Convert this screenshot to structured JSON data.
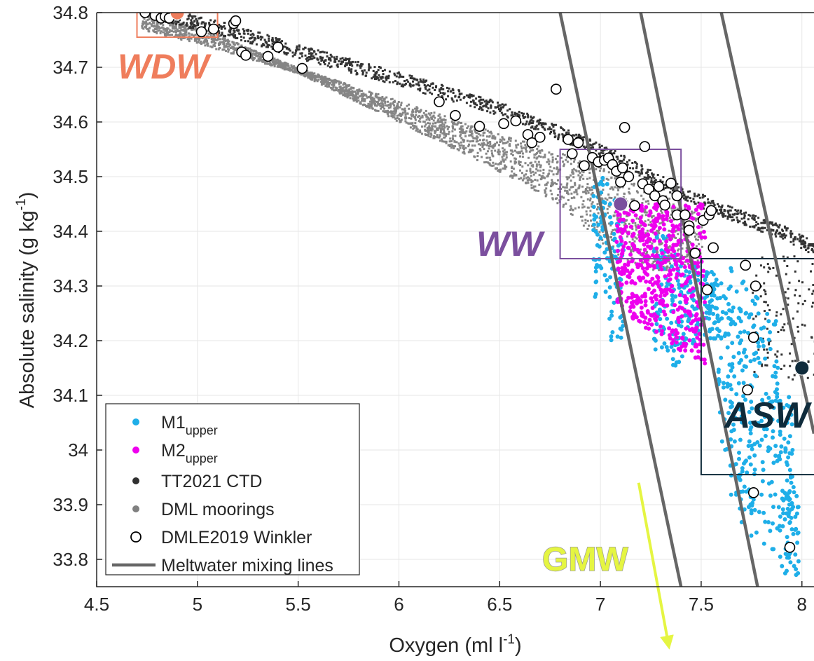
{
  "chart_data": {
    "type": "scatter",
    "xlabel": "Oxygen (ml l",
    "xlabel_sup": "-1",
    "xlabel_end": ")",
    "ylabel": "Absolute salinity (g kg",
    "ylabel_sup": "-1",
    "ylabel_end": ")",
    "xlim": [
      4.5,
      8.06
    ],
    "ylim": [
      33.75,
      34.8
    ],
    "xticks": [
      "4.5",
      "5",
      "5.5",
      "6",
      "6.5",
      "7",
      "7.5",
      "8"
    ],
    "yticks": [
      "33.8",
      "33.9",
      "34",
      "34.1",
      "34.2",
      "34.3",
      "34.4",
      "34.5",
      "34.6",
      "34.7",
      "34.8"
    ],
    "grid": true,
    "legend_position": "bottom-left",
    "legend": [
      {
        "label": "M1",
        "sub": "upper",
        "marker": "dot",
        "color": "#1eaee8"
      },
      {
        "label": "M2",
        "sub": "upper",
        "marker": "dot",
        "color": "#ee00ee"
      },
      {
        "label": "TT2021 CTD",
        "sub": "",
        "marker": "dot",
        "color": "#303030"
      },
      {
        "label": "DML moorings",
        "sub": "",
        "marker": "dot",
        "color": "#808080"
      },
      {
        "label": "DMLE2019 Winkler",
        "sub": "",
        "marker": "circle",
        "color": "#000000"
      },
      {
        "label": "Meltwater mixing lines",
        "sub": "",
        "marker": "line",
        "color": "#666666"
      }
    ],
    "water_masses": [
      {
        "label": "WDW",
        "color": "#ef7d5c",
        "point": [
          4.9,
          34.8
        ],
        "box": [
          4.7,
          5.1,
          34.755,
          34.8
        ]
      },
      {
        "label": "WW",
        "color": "#7b4f9e",
        "point": [
          7.1,
          34.45
        ],
        "box": [
          6.8,
          7.4,
          34.35,
          34.55
        ]
      },
      {
        "label": "ASW",
        "color": "#0f2b3b",
        "point": [
          8.0,
          34.15
        ],
        "box": [
          7.5,
          8.1,
          33.955,
          34.35
        ]
      },
      {
        "label": "GMW",
        "color": "#e5f542"
      }
    ],
    "mixing_lines": [
      {
        "x1": 6.8,
        "y1": 34.8,
        "x2": 7.4,
        "y2": 33.75
      },
      {
        "x1": 7.2,
        "y1": 34.8,
        "x2": 7.78,
        "y2": 33.75
      },
      {
        "x1": 7.6,
        "y1": 34.8,
        "x2": 8.06,
        "y2": 34.03
      }
    ],
    "gmw_arrow": {
      "x1": 7.19,
      "y1": 33.94,
      "x2": 7.34,
      "y2": 33.64
    },
    "winkler_points": [
      [
        4.74,
        34.8
      ],
      [
        4.79,
        34.795
      ],
      [
        4.82,
        34.79
      ],
      [
        4.84,
        34.793
      ],
      [
        4.86,
        34.79
      ],
      [
        5.02,
        34.765
      ],
      [
        5.08,
        34.77
      ],
      [
        5.18,
        34.78
      ],
      [
        5.19,
        34.785
      ],
      [
        5.22,
        34.728
      ],
      [
        5.24,
        34.722
      ],
      [
        5.35,
        34.72
      ],
      [
        5.4,
        34.737
      ],
      [
        5.52,
        34.698
      ],
      [
        6.2,
        34.637
      ],
      [
        6.28,
        34.612
      ],
      [
        6.4,
        34.592
      ],
      [
        6.52,
        34.597
      ],
      [
        6.58,
        34.602
      ],
      [
        6.64,
        34.577
      ],
      [
        6.66,
        34.562
      ],
      [
        6.7,
        34.572
      ],
      [
        6.78,
        34.66
      ],
      [
        6.84,
        34.568
      ],
      [
        6.86,
        34.542
      ],
      [
        6.89,
        34.562
      ],
      [
        6.92,
        34.52
      ],
      [
        6.96,
        34.535
      ],
      [
        6.99,
        34.527
      ],
      [
        7.02,
        34.53
      ],
      [
        7.04,
        34.534
      ],
      [
        7.06,
        34.522
      ],
      [
        7.08,
        34.51
      ],
      [
        7.1,
        34.49
      ],
      [
        7.12,
        34.59
      ],
      [
        7.11,
        34.516
      ],
      [
        7.14,
        34.5
      ],
      [
        7.17,
        34.447
      ],
      [
        7.22,
        34.555
      ],
      [
        7.21,
        34.487
      ],
      [
        7.24,
        34.477
      ],
      [
        7.27,
        34.465
      ],
      [
        7.29,
        34.482
      ],
      [
        7.31,
        34.456
      ],
      [
        7.32,
        34.448
      ],
      [
        7.35,
        34.488
      ],
      [
        7.38,
        34.465
      ],
      [
        7.38,
        34.43
      ],
      [
        7.42,
        34.43
      ],
      [
        7.44,
        34.41
      ],
      [
        7.44,
        34.402
      ],
      [
        7.47,
        34.36
      ],
      [
        7.51,
        34.42
      ],
      [
        7.53,
        34.293
      ],
      [
        7.54,
        34.43
      ],
      [
        7.56,
        34.37
      ],
      [
        7.55,
        34.438
      ],
      [
        7.72,
        34.338
      ],
      [
        7.73,
        34.11
      ],
      [
        7.76,
        34.206
      ],
      [
        7.77,
        34.3
      ],
      [
        7.76,
        33.922
      ],
      [
        7.94,
        33.822
      ]
    ]
  }
}
